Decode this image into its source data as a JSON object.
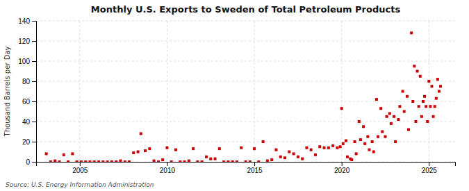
{
  "chart_data": {
    "type": "scatter",
    "title": "Monthly U.S. Exports to Sweden of Total Petroleum Products",
    "ylabel": "Thousand Barrels per Day",
    "source": "Source: U.S. Energy Information Administration",
    "color": "#cc0000",
    "marker": "square",
    "grid": true,
    "xlim": [
      2002.5,
      2026.5
    ],
    "ylim": [
      0,
      140
    ],
    "xticks": [
      2005,
      2010,
      2015,
      2020,
      2025
    ],
    "yticks": [
      0,
      20,
      40,
      60,
      80,
      100,
      120,
      140
    ],
    "x": [
      2003.0833333333333,
      2003.3333333333333,
      2003.5833333333333,
      2003.8333333333333,
      2004.0833333333333,
      2004.3333333333333,
      2004.5833333333333,
      2004.8333333333333,
      2005.0833333333333,
      2005.3333333333333,
      2005.5833333333333,
      2005.8333333333333,
      2006.0833333333333,
      2006.3333333333333,
      2006.5833333333333,
      2006.8333333333333,
      2007.0833333333333,
      2007.3333333333333,
      2007.5833333333333,
      2007.8333333333333,
      2008.0833333333333,
      2008.3333333333333,
      2008.5,
      2008.75,
      2009,
      2009.25,
      2009.5,
      2009.75,
      2010,
      2010.25,
      2010.5,
      2010.75,
      2011,
      2011.25,
      2011.5,
      2011.75,
      2012,
      2012.25,
      2012.5,
      2012.75,
      2013,
      2013.25,
      2013.5,
      2013.75,
      2014,
      2014.25,
      2014.5,
      2014.75,
      2015,
      2015.25,
      2015.5,
      2015.75,
      2016,
      2016.25,
      2016.5,
      2016.75,
      2017,
      2017.25,
      2017.5,
      2017.75,
      2018,
      2018.25,
      2018.5,
      2018.75,
      2019,
      2019.25,
      2019.5,
      2019.75,
      2019.9166666666667,
      2020,
      2020.0833333333333,
      2020.25,
      2020.3333333333333,
      2020.5,
      2020.5833333333333,
      2020.75,
      2020.8333333333333,
      2021,
      2021.0833333333333,
      2021.25,
      2021.3333333333333,
      2021.5,
      2021.5833333333333,
      2021.75,
      2021.8333333333333,
      2022,
      2022.0833333333333,
      2022.25,
      2022.3333333333333,
      2022.5,
      2022.5833333333333,
      2022.75,
      2022.8333333333333,
      2023,
      2023.0833333333333,
      2023.25,
      2023.3333333333333,
      2023.5,
      2023.5833333333333,
      2023.75,
      2023.8333333333333,
      2024,
      2024.0833333333333,
      2024.1666666666667,
      2024.25,
      2024.3333333333333,
      2024.4166666666667,
      2024.5,
      2024.5833333333333,
      2024.6666666666667,
      2024.75,
      2024.8333333333333,
      2024.9166666666667,
      2025,
      2025.0833333333333,
      2025.1666666666667,
      2025.25,
      2025.3333333333333,
      2025.4166666666667,
      2025.5,
      2025.5833333333333,
      2025.6666666666667
    ],
    "values": [
      8,
      0,
      1,
      0,
      7,
      0,
      8,
      0,
      0,
      0,
      0,
      0,
      0,
      0,
      0,
      0,
      0,
      1,
      0,
      0,
      9,
      10,
      28,
      11,
      13,
      1,
      0,
      2,
      14,
      0,
      12,
      0,
      0,
      1,
      13,
      0,
      0,
      5,
      3,
      3,
      13,
      0,
      0,
      0,
      0,
      14,
      0,
      0,
      13,
      0,
      20,
      1,
      2,
      12,
      5,
      4,
      10,
      8,
      5,
      3,
      14,
      12,
      7,
      15,
      14,
      14,
      16,
      14,
      15,
      53,
      18,
      21,
      5,
      3,
      2,
      20,
      8,
      40,
      22,
      35,
      18,
      25,
      12,
      20,
      10,
      62,
      25,
      53,
      30,
      25,
      45,
      48,
      38,
      45,
      20,
      42,
      55,
      70,
      50,
      65,
      32,
      128,
      60,
      95,
      40,
      90,
      55,
      85,
      45,
      60,
      65,
      55,
      40,
      80,
      55,
      75,
      45,
      55,
      63,
      82,
      70,
      75
    ]
  }
}
